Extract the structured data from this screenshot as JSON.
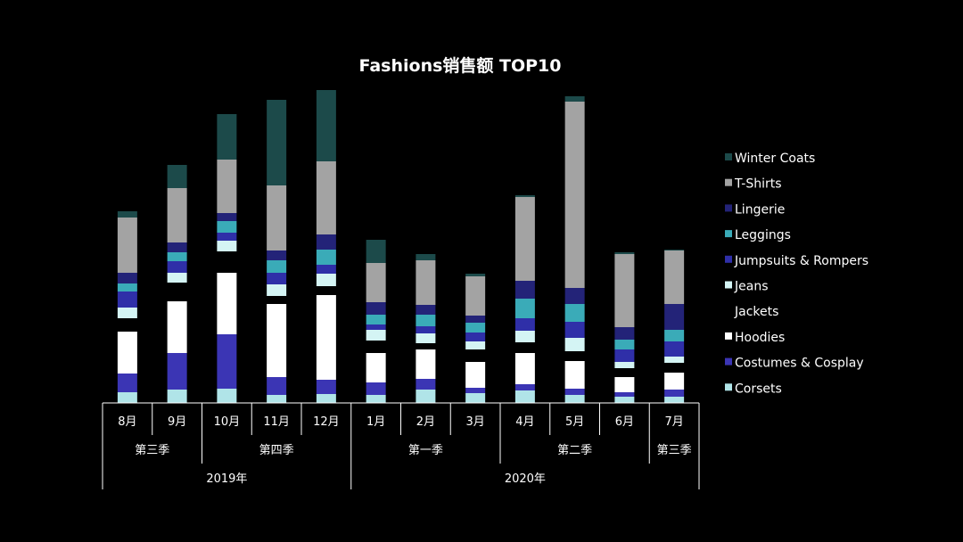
{
  "chart_data": {
    "type": "bar",
    "stacked": true,
    "title": "Fashions销售额 TOP10",
    "xlabel": "",
    "ylabel": "",
    "ylim": [
      0,
      370
    ],
    "categories": [
      "8月",
      "9月",
      "10月",
      "11月",
      "12月",
      "1月",
      "2月",
      "3月",
      "4月",
      "5月",
      "6月",
      "7月"
    ],
    "quarter_groups": [
      {
        "label": "第三季",
        "count": 2
      },
      {
        "label": "第四季",
        "count": 3
      },
      {
        "label": "第一季",
        "count": 3
      },
      {
        "label": "第二季",
        "count": 3
      },
      {
        "label": "第三季",
        "count": 1
      }
    ],
    "year_groups": [
      {
        "label": "2019年",
        "count": 5
      },
      {
        "label": "2020年",
        "count": 7
      }
    ],
    "legend_position": "right",
    "series": [
      {
        "name": "Corsets",
        "color": "#b0e4e8",
        "values": [
          12,
          15,
          16,
          9,
          10,
          9,
          15,
          11,
          14,
          9,
          7,
          7
        ]
      },
      {
        "name": "Costumes & Cosplay",
        "color": "#3b35b4",
        "values": [
          21,
          41,
          61,
          20,
          16,
          14,
          12,
          6,
          7,
          7,
          5,
          8
        ]
      },
      {
        "name": "Hoodies",
        "color": "#ffffff",
        "values": [
          47,
          58,
          69,
          82,
          95,
          33,
          33,
          29,
          35,
          31,
          17,
          19
        ]
      },
      {
        "name": "Jackets",
        "color": "#000000",
        "values": [
          15,
          21,
          24,
          9,
          10,
          14,
          7,
          14,
          12,
          11,
          10,
          11
        ]
      },
      {
        "name": "Jeans",
        "color": "#d4f4f4",
        "values": [
          12,
          11,
          12,
          13,
          14,
          12,
          11,
          9,
          13,
          15,
          7,
          7
        ]
      },
      {
        "name": "Jumpsuits & Rompers",
        "color": "#2f2fa8",
        "values": [
          18,
          13,
          9,
          13,
          10,
          6,
          8,
          10,
          14,
          18,
          14,
          17
        ]
      },
      {
        "name": "Leggings",
        "color": "#3aabb8",
        "values": [
          9,
          10,
          13,
          14,
          17,
          11,
          13,
          11,
          22,
          20,
          11,
          13
        ]
      },
      {
        "name": "Lingerie",
        "color": "#232378",
        "values": [
          12,
          11,
          9,
          11,
          17,
          14,
          11,
          8,
          20,
          18,
          14,
          29
        ]
      },
      {
        "name": "T-Shirts",
        "color": "#a3a3a3",
        "values": [
          62,
          61,
          60,
          73,
          82,
          44,
          50,
          44,
          94,
          209,
          82,
          60
        ]
      },
      {
        "name": "Winter Coats",
        "color": "#1c4a4a",
        "values": [
          7,
          26,
          51,
          96,
          80,
          26,
          7,
          3,
          2,
          6,
          2,
          1
        ]
      }
    ]
  }
}
